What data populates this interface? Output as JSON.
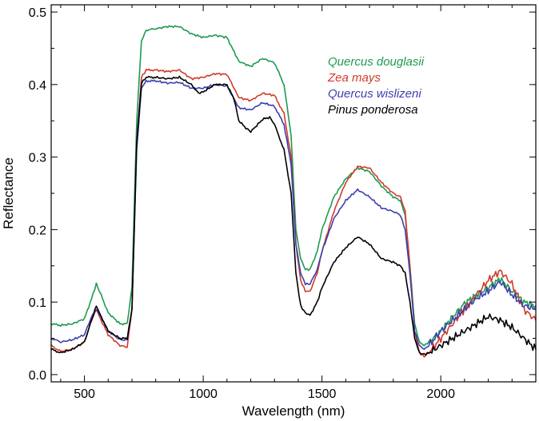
{
  "chart_data": {
    "type": "line",
    "title": "",
    "xlabel": "Wavelength (nm)",
    "ylabel": "Reflectance",
    "xlim": [
      360,
      2400
    ],
    "ylim": [
      -0.01,
      0.51
    ],
    "xticks": [
      500,
      1000,
      1500,
      2000
    ],
    "yticks": [
      0.0,
      0.1,
      0.2,
      0.3,
      0.4,
      0.5
    ],
    "xtick_labels": [
      "500",
      "1000",
      "1500",
      "2000"
    ],
    "ytick_labels": [
      "0.0",
      "0.1",
      "0.2",
      "0.3",
      "0.4",
      "0.5"
    ],
    "grid": false,
    "legend_position": "top-right",
    "series": [
      {
        "name": "Quercus douglasii",
        "color": "#1e9a50",
        "x": [
          360,
          400,
          450,
          500,
          530,
          550,
          570,
          600,
          650,
          680,
          700,
          720,
          740,
          760,
          800,
          850,
          900,
          950,
          1000,
          1050,
          1100,
          1130,
          1150,
          1200,
          1250,
          1300,
          1340,
          1370,
          1390,
          1410,
          1430,
          1450,
          1480,
          1500,
          1550,
          1600,
          1650,
          1700,
          1750,
          1800,
          1830,
          1850,
          1870,
          1890,
          1910,
          1930,
          1950,
          2000,
          2050,
          2100,
          2150,
          2200,
          2250,
          2300,
          2350,
          2400
        ],
        "y": [
          0.07,
          0.068,
          0.07,
          0.077,
          0.105,
          0.125,
          0.11,
          0.085,
          0.07,
          0.07,
          0.12,
          0.35,
          0.46,
          0.475,
          0.477,
          0.48,
          0.48,
          0.47,
          0.465,
          0.468,
          0.465,
          0.445,
          0.432,
          0.425,
          0.436,
          0.43,
          0.4,
          0.33,
          0.2,
          0.16,
          0.145,
          0.145,
          0.17,
          0.2,
          0.245,
          0.27,
          0.285,
          0.28,
          0.26,
          0.245,
          0.24,
          0.22,
          0.15,
          0.07,
          0.045,
          0.04,
          0.045,
          0.06,
          0.08,
          0.098,
          0.11,
          0.12,
          0.132,
          0.115,
          0.1,
          0.095
        ]
      },
      {
        "name": "Zea mays",
        "color": "#d23a2c",
        "x": [
          360,
          400,
          450,
          500,
          530,
          550,
          570,
          600,
          650,
          680,
          700,
          720,
          740,
          760,
          800,
          850,
          900,
          950,
          1000,
          1050,
          1100,
          1130,
          1150,
          1200,
          1250,
          1300,
          1340,
          1370,
          1390,
          1410,
          1430,
          1450,
          1480,
          1500,
          1550,
          1600,
          1650,
          1700,
          1750,
          1800,
          1830,
          1850,
          1870,
          1890,
          1910,
          1930,
          1950,
          2000,
          2050,
          2100,
          2150,
          2200,
          2250,
          2300,
          2350,
          2400
        ],
        "y": [
          0.04,
          0.032,
          0.035,
          0.045,
          0.075,
          0.09,
          0.075,
          0.055,
          0.04,
          0.038,
          0.09,
          0.32,
          0.41,
          0.42,
          0.42,
          0.418,
          0.42,
          0.408,
          0.41,
          0.415,
          0.414,
          0.395,
          0.382,
          0.378,
          0.388,
          0.385,
          0.36,
          0.3,
          0.18,
          0.13,
          0.115,
          0.115,
          0.14,
          0.17,
          0.225,
          0.265,
          0.287,
          0.285,
          0.265,
          0.25,
          0.245,
          0.225,
          0.15,
          0.06,
          0.03,
          0.025,
          0.03,
          0.05,
          0.07,
          0.09,
          0.11,
          0.13,
          0.143,
          0.125,
          0.09,
          0.075
        ]
      },
      {
        "name": "Quercus wislizeni",
        "color": "#3b3fb0",
        "x": [
          360,
          400,
          450,
          500,
          530,
          550,
          570,
          600,
          650,
          680,
          700,
          720,
          740,
          760,
          800,
          850,
          900,
          950,
          1000,
          1050,
          1100,
          1130,
          1150,
          1200,
          1250,
          1300,
          1340,
          1370,
          1390,
          1410,
          1430,
          1450,
          1480,
          1500,
          1550,
          1600,
          1650,
          1700,
          1750,
          1800,
          1830,
          1850,
          1870,
          1890,
          1910,
          1930,
          1950,
          2000,
          2050,
          2100,
          2150,
          2200,
          2250,
          2300,
          2350,
          2400
        ],
        "y": [
          0.05,
          0.045,
          0.048,
          0.055,
          0.08,
          0.09,
          0.08,
          0.06,
          0.048,
          0.048,
          0.09,
          0.31,
          0.395,
          0.405,
          0.405,
          0.402,
          0.403,
          0.395,
          0.395,
          0.4,
          0.398,
          0.38,
          0.368,
          0.365,
          0.375,
          0.37,
          0.345,
          0.29,
          0.18,
          0.14,
          0.125,
          0.125,
          0.145,
          0.17,
          0.215,
          0.24,
          0.255,
          0.245,
          0.23,
          0.225,
          0.22,
          0.2,
          0.14,
          0.06,
          0.04,
          0.035,
          0.04,
          0.06,
          0.075,
          0.09,
          0.105,
          0.115,
          0.128,
          0.11,
          0.095,
          0.09
        ]
      },
      {
        "name": "Pinus ponderosa",
        "color": "#000000",
        "x": [
          360,
          400,
          450,
          500,
          530,
          550,
          570,
          600,
          650,
          680,
          700,
          720,
          740,
          760,
          800,
          850,
          900,
          950,
          980,
          1000,
          1050,
          1100,
          1130,
          1150,
          1180,
          1200,
          1250,
          1280,
          1300,
          1340,
          1370,
          1390,
          1410,
          1430,
          1450,
          1480,
          1500,
          1550,
          1600,
          1650,
          1700,
          1750,
          1800,
          1830,
          1850,
          1870,
          1890,
          1910,
          1930,
          1950,
          2000,
          2050,
          2100,
          2150,
          2200,
          2250,
          2300,
          2350,
          2400
        ],
        "y": [
          0.035,
          0.03,
          0.035,
          0.045,
          0.075,
          0.095,
          0.08,
          0.06,
          0.05,
          0.05,
          0.09,
          0.32,
          0.402,
          0.41,
          0.41,
          0.408,
          0.41,
          0.4,
          0.388,
          0.39,
          0.4,
          0.4,
          0.38,
          0.35,
          0.34,
          0.335,
          0.352,
          0.355,
          0.345,
          0.31,
          0.25,
          0.14,
          0.095,
          0.085,
          0.082,
          0.1,
          0.12,
          0.155,
          0.175,
          0.19,
          0.18,
          0.16,
          0.155,
          0.15,
          0.14,
          0.1,
          0.05,
          0.03,
          0.028,
          0.03,
          0.04,
          0.05,
          0.06,
          0.07,
          0.08,
          0.075,
          0.065,
          0.05,
          0.035
        ]
      }
    ]
  }
}
